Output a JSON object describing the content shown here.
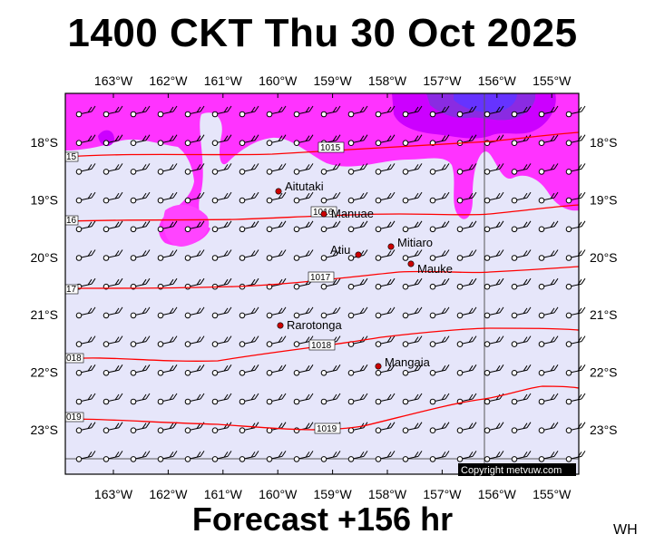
{
  "title": "1400 CKT Thu 30 Oct 2025",
  "forecast": "Forecast +156 hr",
  "initials": "WH",
  "copyright": "Copyright metvuw.com",
  "axes": {
    "lon_labels": [
      "163°W",
      "162°W",
      "161°W",
      "160°W",
      "159°W",
      "158°W",
      "157°W",
      "156°W",
      "155°W"
    ],
    "lat_labels": [
      "18°S",
      "19°S",
      "20°S",
      "21°S",
      "22°S",
      "23°S"
    ]
  },
  "places": [
    {
      "name": "Aitutaki"
    },
    {
      "name": "Manuae"
    },
    {
      "name": "Atiu"
    },
    {
      "name": "Mitiaro"
    },
    {
      "name": "Mauke"
    },
    {
      "name": "Rarotonga"
    },
    {
      "name": "Mangaia"
    }
  ],
  "isobars": [
    {
      "label": "1015",
      "edge_label": "15"
    },
    {
      "label": "1016",
      "edge_label": "16"
    },
    {
      "label": "1017",
      "edge_label": "17"
    },
    {
      "label": "1018",
      "edge_label": "018"
    },
    {
      "label": "1019",
      "edge_label": "019"
    }
  ],
  "colors": {
    "background": "#e6e6fa",
    "rain_light": "#ff33ff",
    "rain_mid": "#cc00ff",
    "rain_heavy": "#6633ff",
    "isobar": "#ff0000",
    "town": "#cc0000"
  }
}
